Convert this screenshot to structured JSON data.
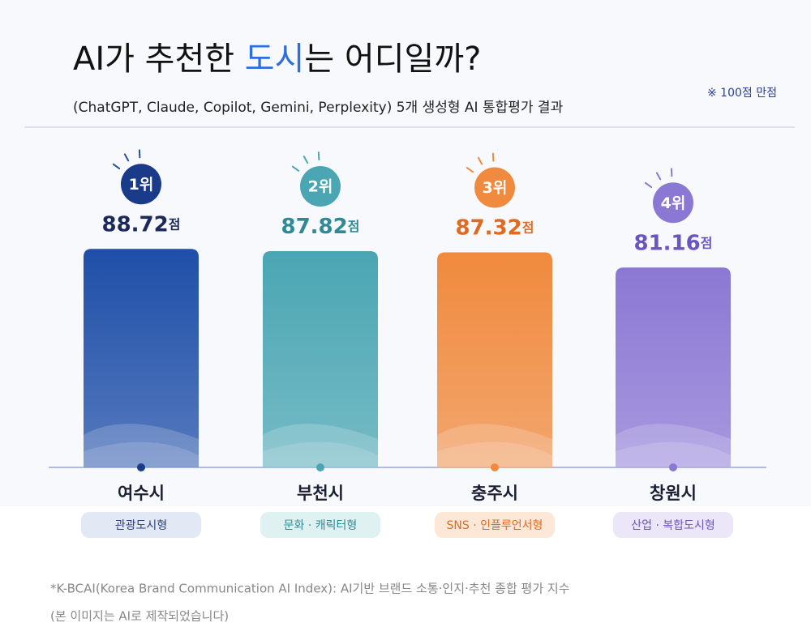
{
  "chart_data": {
    "type": "bar",
    "title_parts": [
      "AI가 추천한 ",
      "도시",
      "는 어디일까?"
    ],
    "subtitle": "(ChatGPT, Claude, Copilot, Gemini, Perplexity) 5개 생성형 AI 통합평가 결과",
    "note": "※ 100점 만점",
    "categories": [
      "여수시",
      "부천시",
      "충주시",
      "창원시"
    ],
    "ranks": [
      "1위",
      "2위",
      "3위",
      "4위"
    ],
    "values": [
      88.72,
      87.82,
      87.32,
      81.16
    ],
    "unit": "점",
    "types": [
      "관광도시형",
      "문화 · 캐릭터형",
      "SNS · 인플루언서형",
      "산업 · 복합도시형"
    ],
    "colors": [
      "#1f4fa8",
      "#4aa6b3",
      "#f08a3e",
      "#8b78d4"
    ],
    "ylim": [
      0,
      100
    ],
    "footnotes": [
      "*K-BCAI(Korea Brand Communication AI Index): AI기반 브랜드 소통·인지·추천 종합 평가 지수",
      "(본 이미지는 AI로 제작되었습니다)"
    ]
  }
}
